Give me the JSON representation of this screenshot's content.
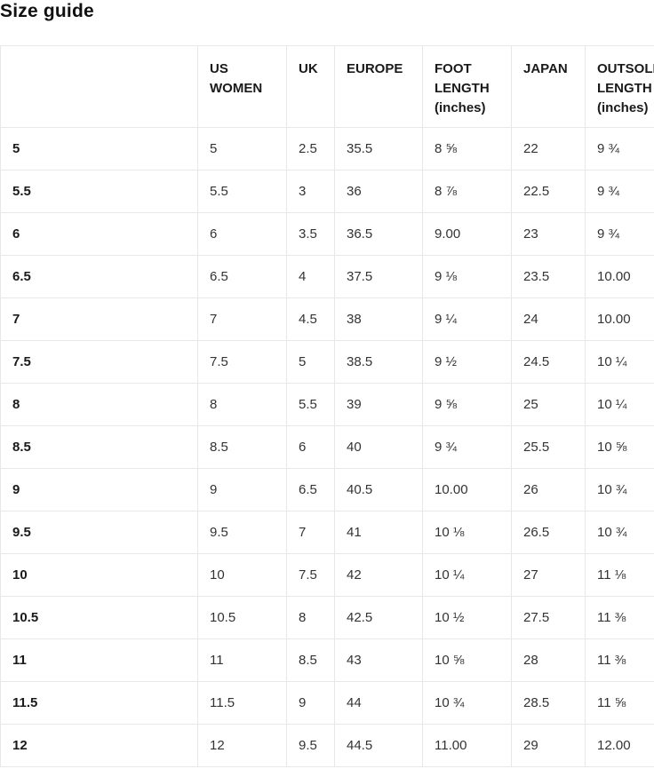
{
  "page": {
    "title": "Size guide"
  },
  "size_table": {
    "columns": [
      {
        "key": "size",
        "label": ""
      },
      {
        "key": "us_women",
        "label": "US WOMEN"
      },
      {
        "key": "uk",
        "label": "UK"
      },
      {
        "key": "europe",
        "label": "EUROPE"
      },
      {
        "key": "foot_length",
        "label": "FOOT LENGTH (inches)"
      },
      {
        "key": "japan",
        "label": "JAPAN"
      },
      {
        "key": "outsole_length",
        "label": "OUTSOLE LENGTH (inches)"
      }
    ],
    "rows": [
      {
        "size": "5",
        "us_women": "5",
        "uk": "2.5",
        "europe": "35.5",
        "foot_length": "8 ⅝",
        "japan": "22",
        "outsole_length": "9 ¾"
      },
      {
        "size": "5.5",
        "us_women": "5.5",
        "uk": "3",
        "europe": "36",
        "foot_length": "8 ⅞",
        "japan": "22.5",
        "outsole_length": "9 ¾"
      },
      {
        "size": "6",
        "us_women": "6",
        "uk": "3.5",
        "europe": "36.5",
        "foot_length": "9.00",
        "japan": "23",
        "outsole_length": "9 ¾"
      },
      {
        "size": "6.5",
        "us_women": "6.5",
        "uk": "4",
        "europe": "37.5",
        "foot_length": "9 ⅛",
        "japan": "23.5",
        "outsole_length": "10.00"
      },
      {
        "size": "7",
        "us_women": "7",
        "uk": "4.5",
        "europe": "38",
        "foot_length": "9 ¼",
        "japan": "24",
        "outsole_length": "10.00"
      },
      {
        "size": "7.5",
        "us_women": "7.5",
        "uk": "5",
        "europe": "38.5",
        "foot_length": "9 ½",
        "japan": "24.5",
        "outsole_length": "10 ¼"
      },
      {
        "size": "8",
        "us_women": "8",
        "uk": "5.5",
        "europe": "39",
        "foot_length": "9 ⅝",
        "japan": "25",
        "outsole_length": "10 ¼"
      },
      {
        "size": "8.5",
        "us_women": "8.5",
        "uk": "6",
        "europe": "40",
        "foot_length": "9 ¾",
        "japan": "25.5",
        "outsole_length": "10 ⅝"
      },
      {
        "size": "9",
        "us_women": "9",
        "uk": "6.5",
        "europe": "40.5",
        "foot_length": "10.00",
        "japan": "26",
        "outsole_length": "10 ¾"
      },
      {
        "size": "9.5",
        "us_women": "9.5",
        "uk": "7",
        "europe": "41",
        "foot_length": "10 ⅛",
        "japan": "26.5",
        "outsole_length": "10 ¾"
      },
      {
        "size": "10",
        "us_women": "10",
        "uk": "7.5",
        "europe": "42",
        "foot_length": "10 ¼",
        "japan": "27",
        "outsole_length": "11 ⅛"
      },
      {
        "size": "10.5",
        "us_women": "10.5",
        "uk": "8",
        "europe": "42.5",
        "foot_length": "10 ½",
        "japan": "27.5",
        "outsole_length": "11 ⅜"
      },
      {
        "size": "11",
        "us_women": "11",
        "uk": "8.5",
        "europe": "43",
        "foot_length": "10 ⅝",
        "japan": "28",
        "outsole_length": "11 ⅜"
      },
      {
        "size": "11.5",
        "us_women": "11.5",
        "uk": "9",
        "europe": "44",
        "foot_length": "10 ¾",
        "japan": "28.5",
        "outsole_length": "11 ⅝"
      },
      {
        "size": "12",
        "us_women": "12",
        "uk": "9.5",
        "europe": "44.5",
        "foot_length": "11.00",
        "japan": "29",
        "outsole_length": "12.00"
      }
    ],
    "colors": {
      "border": "#e8e8e8",
      "heading_text": "#1a1a1a",
      "cell_text": "#333333",
      "background": "#ffffff"
    }
  }
}
